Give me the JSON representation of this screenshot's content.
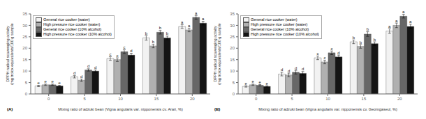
{
  "chart_data": [
    {
      "type": "bar",
      "title": "(A)",
      "xlabel": "Mixing ratio of adzuki bean (Vigna angularis var. nipponensis cv. Arari, %)",
      "ylabel": "DPPH radical scavenging activity\n(mg trolox equivalents/100 g sample",
      "categories": [
        0,
        5,
        10,
        15,
        20
      ],
      "series": [
        {
          "name": "General rice cooker (water)",
          "color": "#f2f2f2",
          "values": [
            3.5,
            7.5,
            15.5,
            24.5,
            29.5
          ],
          "errors": [
            0.3,
            0.5,
            0.8,
            1.0,
            0.8
          ],
          "letters": [
            "e",
            "d",
            "c",
            "b",
            "a"
          ]
        },
        {
          "name": "High pressure rice cooker (water)",
          "color": "#b0b0b0",
          "values": [
            4.0,
            6.0,
            15.0,
            21.0,
            28.0
          ],
          "errors": [
            0.3,
            0.5,
            0.8,
            0.8,
            0.8
          ],
          "letters": [
            "e",
            "d",
            "c",
            "b",
            "a"
          ]
        },
        {
          "name": "General rice cooker (10%  alcohol)",
          "color": "#676767",
          "values": [
            4.0,
            10.5,
            18.5,
            27.0,
            33.5
          ],
          "errors": [
            0.3,
            0.5,
            0.8,
            0.8,
            0.8
          ],
          "letters": [
            "e",
            "d",
            "c",
            "b",
            "a"
          ]
        },
        {
          "name": "High pressure rice cooker (10%  alcohol)",
          "color": "#141414",
          "values": [
            3.5,
            10.0,
            17.0,
            24.5,
            31.0
          ],
          "errors": [
            0.3,
            0.5,
            0.8,
            0.8,
            0.8
          ],
          "letters": [
            "e",
            "d",
            "d",
            "b",
            "a"
          ]
        }
      ],
      "ylim": [
        0,
        35
      ],
      "yticks": [
        0,
        5,
        10,
        15,
        20,
        25,
        30,
        35
      ],
      "legend": "upper left",
      "grid": false
    },
    {
      "type": "bar",
      "title": "(B)",
      "xlabel": "Mixing ratio of adzuki bean (Vigna angularis var. nipponensis cv. Geomgaseul, %)",
      "ylabel": "DPPH radical scavenging activity\n(mg trolox equivalents/100 g sample",
      "categories": [
        0,
        5,
        10,
        15,
        20
      ],
      "series": [
        {
          "name": "General rice cooker (water)",
          "color": "#f2f2f2",
          "values": [
            3.3,
            8.7,
            15.8,
            22.8,
            27.5
          ],
          "errors": [
            0.3,
            0.8,
            0.8,
            0.8,
            1.0
          ],
          "letters": [
            "e",
            "d",
            "c",
            "b",
            "a"
          ]
        },
        {
          "name": "High pressure rice cooker (water)",
          "color": "#b0b0b0",
          "values": [
            4.0,
            8.3,
            14.0,
            20.8,
            30.0
          ],
          "errors": [
            0.3,
            0.8,
            0.8,
            0.8,
            1.0
          ],
          "letters": [
            "e",
            "d",
            "c",
            "b",
            "a"
          ]
        },
        {
          "name": "General rice cooker (10%  alcohol)",
          "color": "#676767",
          "values": [
            3.8,
            9.5,
            18.0,
            26.2,
            34.0
          ],
          "errors": [
            0.3,
            0.8,
            0.8,
            1.0,
            0.8
          ],
          "letters": [
            "e",
            "d",
            "c",
            "b",
            "a"
          ]
        },
        {
          "name": "High pressure rice cooker (10%  alcohol)",
          "color": "#141414",
          "values": [
            3.3,
            9.0,
            16.2,
            22.0,
            29.5
          ],
          "errors": [
            0.3,
            0.8,
            0.8,
            0.8,
            1.0
          ],
          "letters": [
            "e",
            "d",
            "d",
            "b",
            "a"
          ]
        }
      ],
      "ylim": [
        0,
        35
      ],
      "yticks": [
        0,
        5,
        10,
        15,
        20,
        25,
        30,
        35
      ],
      "legend": "upper left",
      "grid": false
    }
  ]
}
